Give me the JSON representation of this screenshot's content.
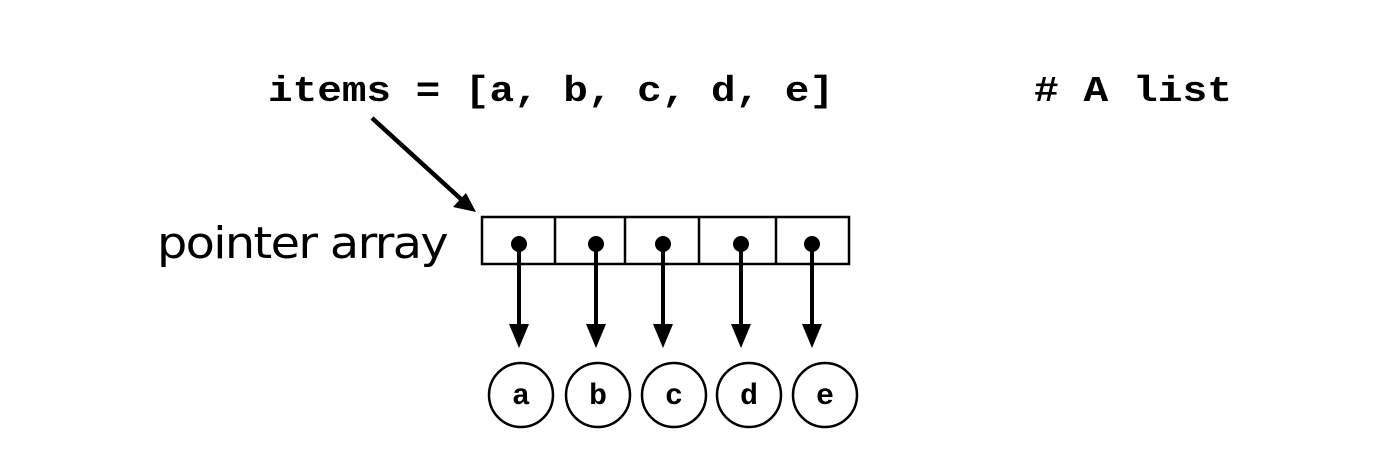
{
  "diagram": {
    "code_line": "items = [a, b, c, d, e]",
    "comment": "# A list",
    "array_label": "pointer array",
    "elements": [
      "a",
      "b",
      "c",
      "d",
      "e"
    ]
  },
  "colors": {
    "ink": "#000000",
    "background": "#ffffff"
  }
}
